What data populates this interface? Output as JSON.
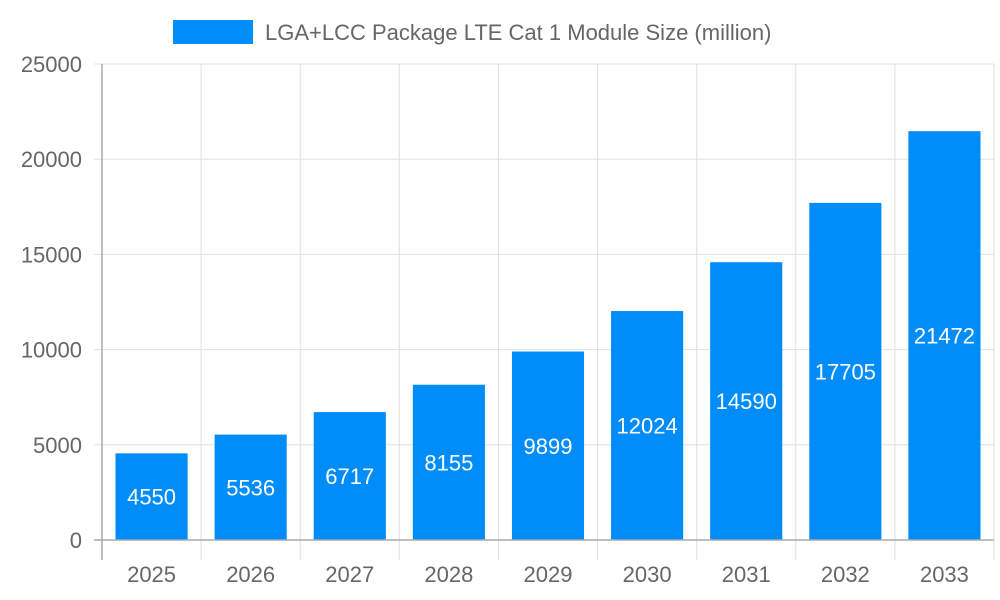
{
  "chart_data": {
    "type": "bar",
    "categories": [
      "2025",
      "2026",
      "2027",
      "2028",
      "2029",
      "2030",
      "2031",
      "2032",
      "2033"
    ],
    "series": [
      {
        "name": "LGA+LCC Package LTE Cat 1 Module Size (million)",
        "values": [
          4550,
          5536,
          6717,
          8155,
          9899,
          12024,
          14590,
          17705,
          21472
        ],
        "color": "#008cf9"
      }
    ],
    "ylim": [
      0,
      25000
    ],
    "yticks": [
      0,
      5000,
      10000,
      15000,
      20000,
      25000
    ],
    "grid": true,
    "legend": "top-center",
    "data_labels": true
  }
}
